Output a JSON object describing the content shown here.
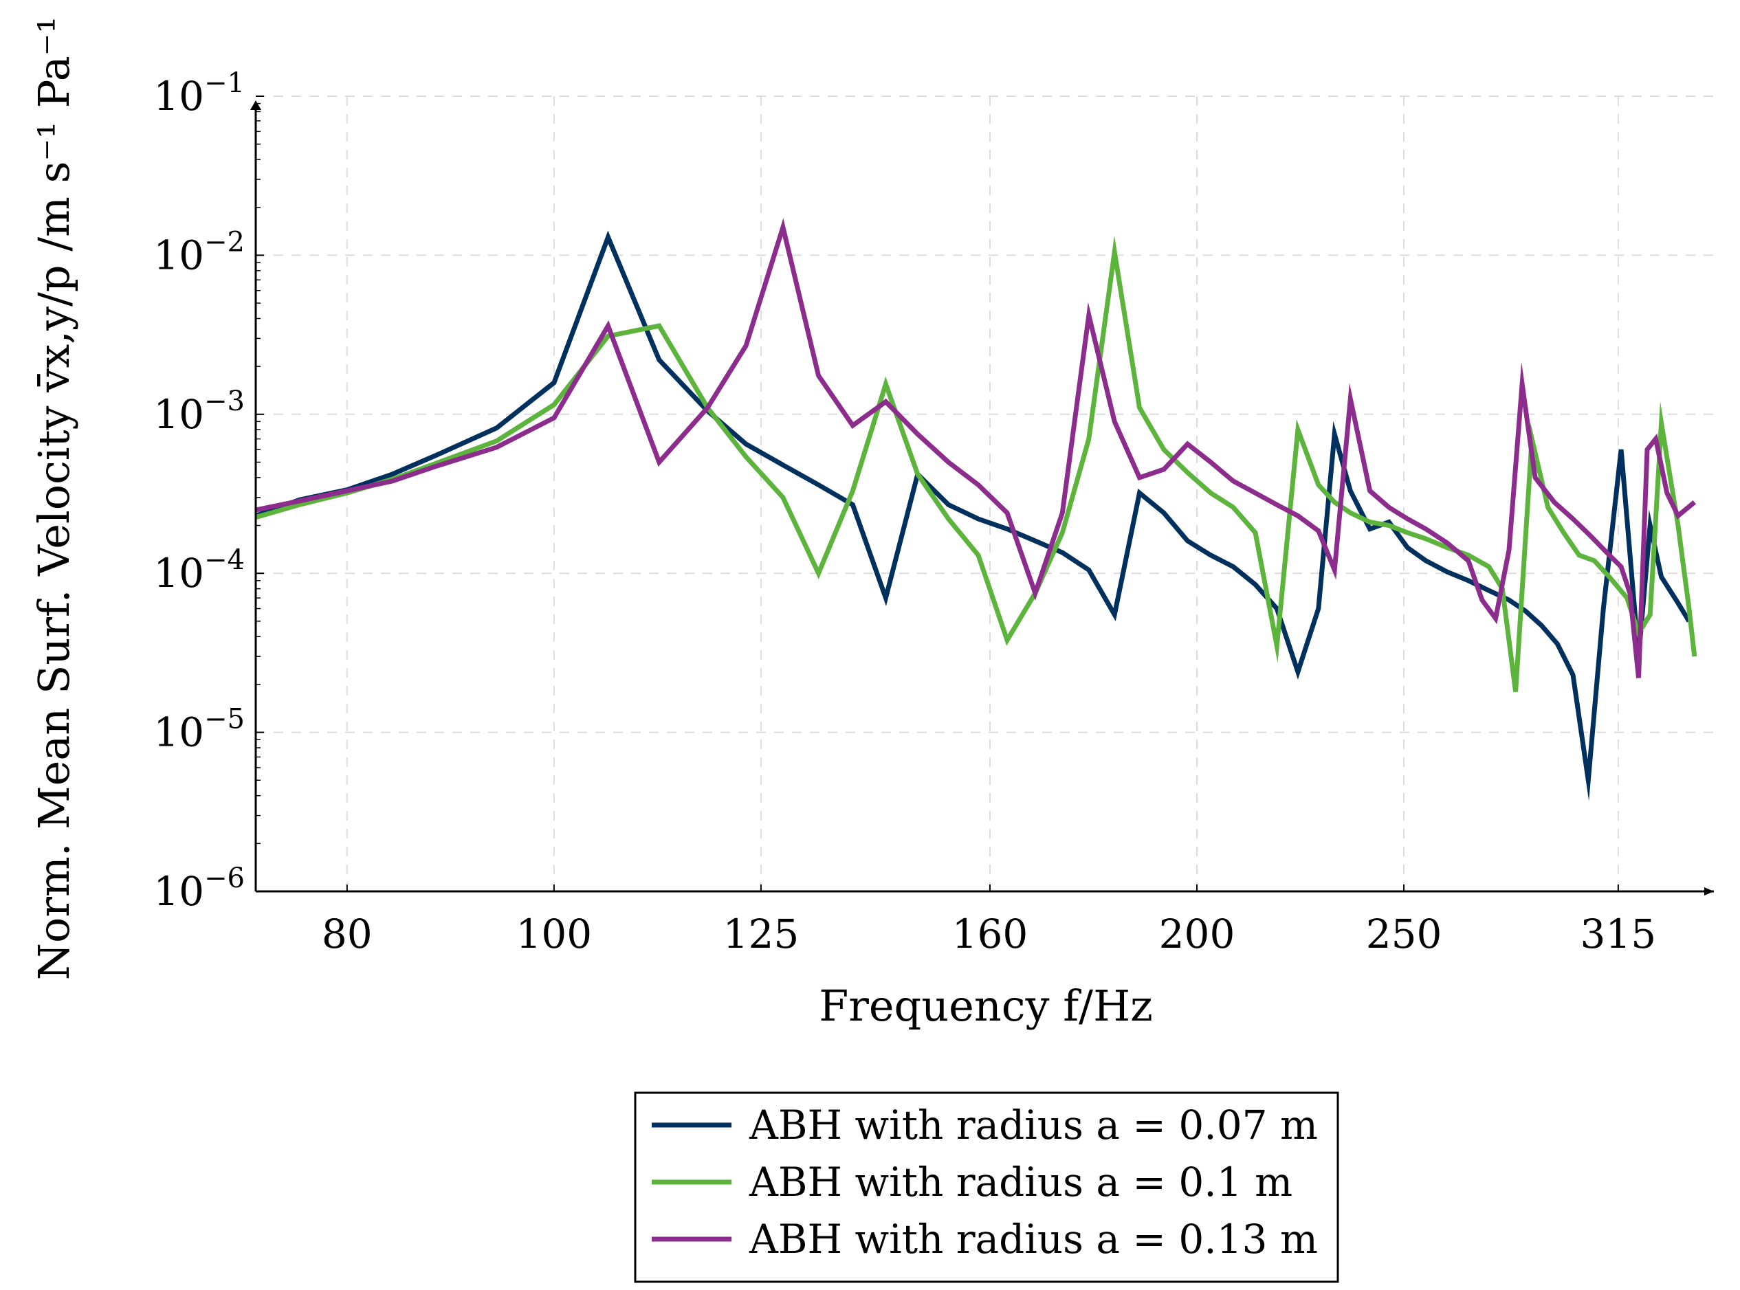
{
  "chart_data": {
    "type": "line",
    "title": "",
    "xlabel": "Frequency f/Hz",
    "ylabel": "Norm. Mean Surf. Velocity v̄x,y/p /m s⁻¹ Pa⁻¹",
    "x_scale": "log",
    "y_scale": "log",
    "xlim": [
      72.5,
      350
    ],
    "ylim": [
      1e-06,
      0.1
    ],
    "grid": true,
    "legend_position": "bottom-center",
    "x_ticks": [
      {
        "value": 80,
        "label": "80"
      },
      {
        "value": 100,
        "label": "100"
      },
      {
        "value": 125,
        "label": "125"
      },
      {
        "value": 160,
        "label": "160"
      },
      {
        "value": 200,
        "label": "200"
      },
      {
        "value": 250,
        "label": "250"
      },
      {
        "value": 315,
        "label": "315"
      }
    ],
    "y_ticks": [
      {
        "value": 1e-06,
        "base": "10",
        "exp": "−6"
      },
      {
        "value": 1e-05,
        "base": "10",
        "exp": "−5"
      },
      {
        "value": 0.0001,
        "base": "10",
        "exp": "−4"
      },
      {
        "value": 0.001,
        "base": "10",
        "exp": "−3"
      },
      {
        "value": 0.01,
        "base": "10",
        "exp": "−2"
      },
      {
        "value": 0.1,
        "base": "10",
        "exp": "−1"
      }
    ],
    "series": [
      {
        "name": "ABH with radius a = 0.07 m",
        "color": "#00305e",
        "points": [
          [
            72.5,
            0.00023
          ],
          [
            76,
            0.00029
          ],
          [
            80,
            0.000335
          ],
          [
            84,
            0.00042
          ],
          [
            88,
            0.00055
          ],
          [
            94,
            0.00082
          ],
          [
            100,
            0.00158
          ],
          [
            106,
            0.013
          ],
          [
            112,
            0.0022
          ],
          [
            118,
            0.00105
          ],
          [
            123,
            0.00065
          ],
          [
            128,
            0.00048
          ],
          [
            133,
            0.00036
          ],
          [
            138,
            0.00027
          ],
          [
            143,
            7e-05
          ],
          [
            148,
            0.00042
          ],
          [
            153,
            0.00027
          ],
          [
            158,
            0.00022
          ],
          [
            163,
            0.00019
          ],
          [
            168,
            0.00016
          ],
          [
            173,
            0.000135
          ],
          [
            178,
            0.000105
          ],
          [
            183,
            5.5e-05
          ],
          [
            188,
            0.00032
          ],
          [
            193,
            0.00024
          ],
          [
            198,
            0.00016
          ],
          [
            203,
            0.00013
          ],
          [
            208,
            0.00011
          ],
          [
            213,
            8.5e-05
          ],
          [
            218,
            6e-05
          ],
          [
            223,
            2.4e-05
          ],
          [
            228,
            6e-05
          ],
          [
            232,
            0.00075
          ],
          [
            236,
            0.00033
          ],
          [
            241,
            0.00019
          ],
          [
            246,
            0.00021
          ],
          [
            251,
            0.000145
          ],
          [
            256,
            0.00012
          ],
          [
            262,
            0.000102
          ],
          [
            268,
            9e-05
          ],
          [
            274,
            7.8e-05
          ],
          [
            280,
            6.8e-05
          ],
          [
            285,
            5.8e-05
          ],
          [
            290,
            4.7e-05
          ],
          [
            295,
            3.6e-05
          ],
          [
            300,
            2.3e-05
          ],
          [
            305,
            5e-06
          ],
          [
            310,
            6e-05
          ],
          [
            316,
            0.0006
          ],
          [
            322,
            3e-05
          ],
          [
            326,
            0.0002
          ],
          [
            330,
            9.5e-05
          ],
          [
            336,
            6.5e-05
          ],
          [
            340,
            5e-05
          ]
        ]
      },
      {
        "name": "ABH with radius a = 0.1 m",
        "color": "#5cb43c",
        "points": [
          [
            72.5,
            0.000225
          ],
          [
            76,
            0.00027
          ],
          [
            80,
            0.00032
          ],
          [
            84,
            0.00039
          ],
          [
            88,
            0.00049
          ],
          [
            94,
            0.00068
          ],
          [
            100,
            0.00115
          ],
          [
            106,
            0.0031
          ],
          [
            112,
            0.0036
          ],
          [
            118,
            0.0011
          ],
          [
            123,
            0.00054
          ],
          [
            128,
            0.0003
          ],
          [
            133,
            0.0001
          ],
          [
            138,
            0.00033
          ],
          [
            143,
            0.00155
          ],
          [
            148,
            0.00042
          ],
          [
            153,
            0.00022
          ],
          [
            158,
            0.00013
          ],
          [
            163,
            3.8e-05
          ],
          [
            168,
            7.5e-05
          ],
          [
            173,
            0.00018
          ],
          [
            178,
            0.0007
          ],
          [
            183,
            0.0105
          ],
          [
            188,
            0.0011
          ],
          [
            193,
            0.0006
          ],
          [
            198,
            0.00043
          ],
          [
            203,
            0.00032
          ],
          [
            208,
            0.00026
          ],
          [
            213,
            0.00018
          ],
          [
            218,
            3.5e-05
          ],
          [
            223,
            0.0008
          ],
          [
            228,
            0.00036
          ],
          [
            232,
            0.00028
          ],
          [
            236,
            0.00024
          ],
          [
            241,
            0.00021
          ],
          [
            246,
            0.0002
          ],
          [
            251,
            0.00018
          ],
          [
            256,
            0.000165
          ],
          [
            262,
            0.000145
          ],
          [
            268,
            0.00013
          ],
          [
            274,
            0.00011
          ],
          [
            278,
            8e-05
          ],
          [
            282,
            1.8e-05
          ],
          [
            287,
            0.0007
          ],
          [
            292,
            0.00026
          ],
          [
            297,
            0.00018
          ],
          [
            302,
            0.00013
          ],
          [
            307,
            0.00012
          ],
          [
            312,
            9.5e-05
          ],
          [
            318,
            7e-05
          ],
          [
            322,
            4.2e-05
          ],
          [
            326,
            5.5e-05
          ],
          [
            330,
            0.00088
          ],
          [
            336,
            0.0002
          ],
          [
            340,
            6e-05
          ],
          [
            342,
            3e-05
          ]
        ]
      },
      {
        "name": "ABH with radius a = 0.13 m",
        "color": "#8c2d8e",
        "points": [
          [
            72.5,
            0.00025
          ],
          [
            76,
            0.000285
          ],
          [
            80,
            0.00033
          ],
          [
            84,
            0.00038
          ],
          [
            88,
            0.00047
          ],
          [
            94,
            0.00062
          ],
          [
            100,
            0.00095
          ],
          [
            106,
            0.0036
          ],
          [
            112,
            0.0005
          ],
          [
            118,
            0.0011
          ],
          [
            123,
            0.0027
          ],
          [
            128,
            0.015
          ],
          [
            133,
            0.00175
          ],
          [
            138,
            0.00085
          ],
          [
            143,
            0.0012
          ],
          [
            148,
            0.00075
          ],
          [
            153,
            0.0005
          ],
          [
            158,
            0.00036
          ],
          [
            163,
            0.00024
          ],
          [
            168,
            7.5e-05
          ],
          [
            173,
            0.00024
          ],
          [
            178,
            0.0042
          ],
          [
            183,
            0.0009
          ],
          [
            188,
            0.0004
          ],
          [
            193,
            0.00045
          ],
          [
            198,
            0.00065
          ],
          [
            203,
            0.0005
          ],
          [
            208,
            0.00038
          ],
          [
            213,
            0.00032
          ],
          [
            218,
            0.00027
          ],
          [
            223,
            0.00023
          ],
          [
            228,
            0.000185
          ],
          [
            232,
            0.000105
          ],
          [
            236,
            0.00125
          ],
          [
            241,
            0.00033
          ],
          [
            246,
            0.00026
          ],
          [
            251,
            0.00022
          ],
          [
            256,
            0.00019
          ],
          [
            262,
            0.000155
          ],
          [
            268,
            0.00012
          ],
          [
            272,
            6.8e-05
          ],
          [
            276,
            5.2e-05
          ],
          [
            280,
            0.00014
          ],
          [
            284,
            0.00155
          ],
          [
            288,
            0.0004
          ],
          [
            294,
            0.00028
          ],
          [
            300,
            0.00022
          ],
          [
            306,
            0.00017
          ],
          [
            312,
            0.00013
          ],
          [
            316,
            0.00011
          ],
          [
            319,
            7.5e-05
          ],
          [
            322,
            2.2e-05
          ],
          [
            325,
            0.0006
          ],
          [
            328,
            0.0007
          ],
          [
            332,
            0.00032
          ],
          [
            336,
            0.00023
          ],
          [
            342,
            0.00028
          ]
        ]
      }
    ]
  }
}
